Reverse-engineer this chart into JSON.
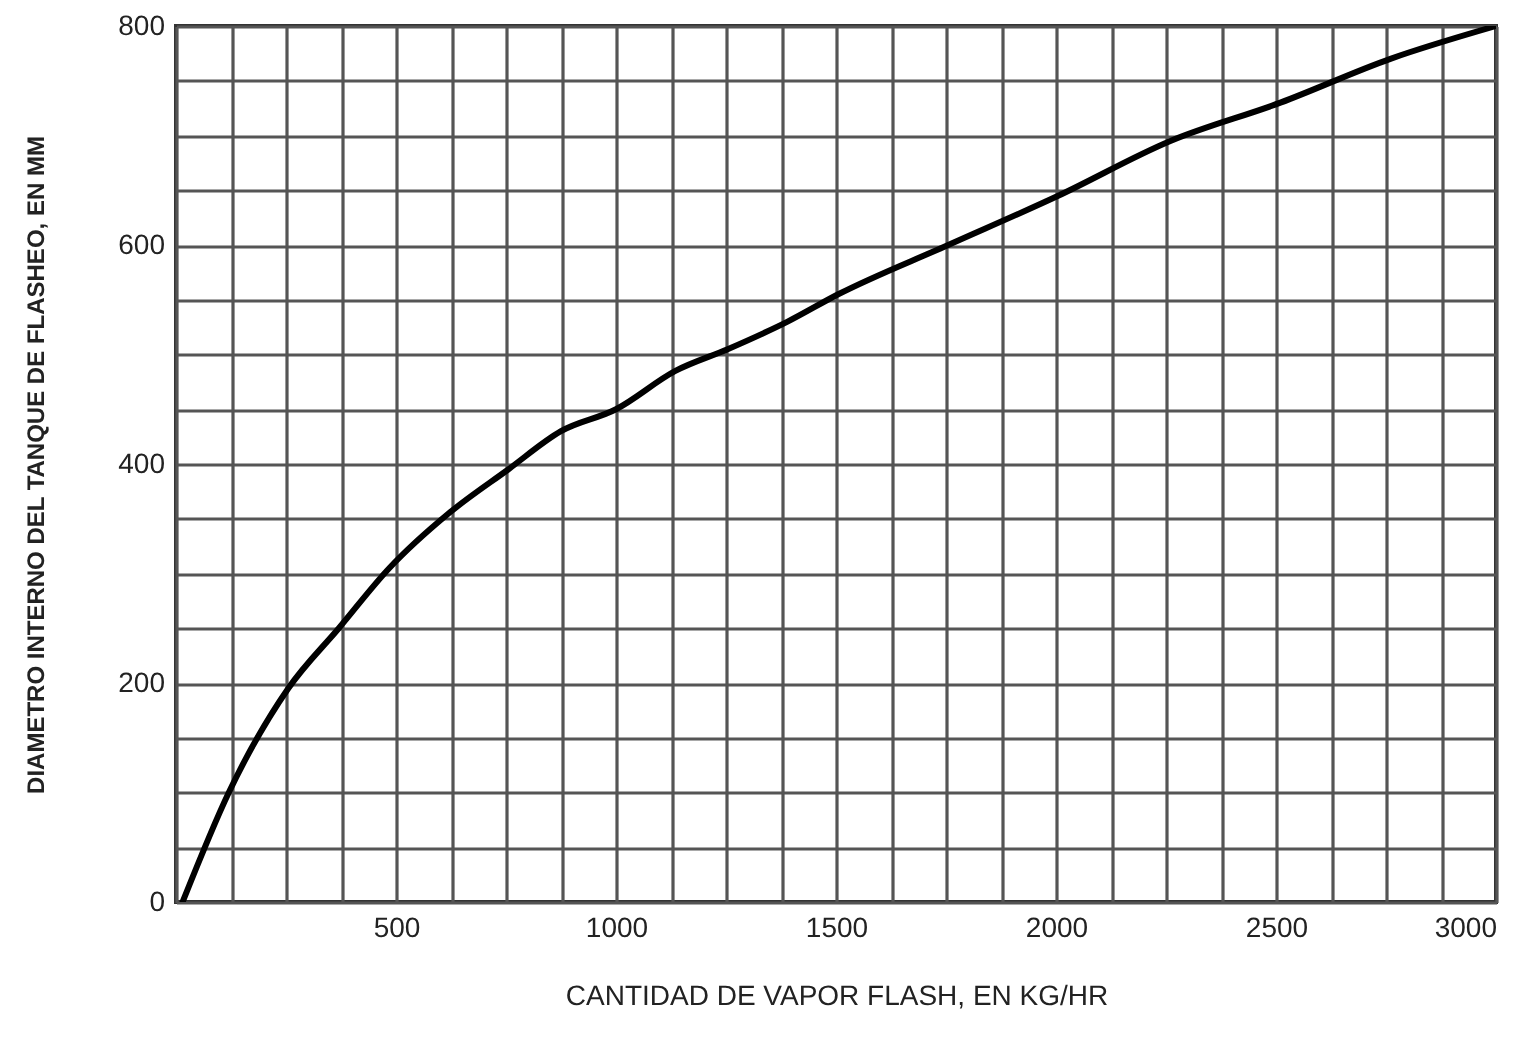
{
  "chart_data": {
    "type": "line",
    "xlabel": "CANTIDAD DE VAPOR FLASH, EN KG/HR",
    "ylabel": "DIAMETRO INTERNO DEL TANQUE DE FLASHEO, EN MM",
    "x": [
      15,
      120,
      255,
      370,
      485,
      620,
      755,
      875,
      1000,
      1135,
      1255,
      1390,
      1505,
      1755,
      2005,
      2260,
      2510,
      2760,
      3000
    ],
    "series": [
      {
        "color": "#000000",
        "values": [
          0,
          100,
          195,
          250,
          305,
          355,
          395,
          430,
          450,
          485,
          505,
          530,
          555,
          600,
          645,
          695,
          730,
          770,
          800
        ]
      }
    ],
    "xlim": [
      0,
      3000
    ],
    "ylim": [
      0,
      800
    ],
    "xticks": [
      {
        "value": 0,
        "label": null
      },
      {
        "value": 125,
        "label": null
      },
      {
        "value": 250,
        "label": null
      },
      {
        "value": 375,
        "label": null
      },
      500,
      {
        "value": 625,
        "label": null
      },
      {
        "value": 750,
        "label": null
      },
      {
        "value": 875,
        "label": null
      },
      1000,
      {
        "value": 1125,
        "label": null
      },
      {
        "value": 1250,
        "label": null
      },
      {
        "value": 1375,
        "label": null
      },
      1500,
      {
        "value": 1625,
        "label": null
      },
      {
        "value": 1750,
        "label": null
      },
      {
        "value": 1875,
        "label": null
      },
      2000,
      {
        "value": 2125,
        "label": null
      },
      {
        "value": 2250,
        "label": null
      },
      {
        "value": 2375,
        "label": null
      },
      2500,
      {
        "value": 2625,
        "label": null
      },
      {
        "value": 2750,
        "label": null
      },
      {
        "value": 2875,
        "label": null
      },
      3000
    ],
    "yticks": [
      0,
      {
        "value": 50,
        "label": null
      },
      {
        "value": 100,
        "label": null
      },
      {
        "value": 150,
        "label": null
      },
      200,
      {
        "value": 250,
        "label": null
      },
      {
        "value": 300,
        "label": null
      },
      {
        "value": 350,
        "label": null
      },
      400,
      {
        "value": 450,
        "label": null
      },
      {
        "value": 500,
        "label": null
      },
      {
        "value": 550,
        "label": null
      },
      600,
      {
        "value": 650,
        "label": null
      },
      {
        "value": 700,
        "label": null
      },
      {
        "value": 750,
        "label": null
      },
      800
    ],
    "grid": true,
    "line_style": "solid"
  }
}
